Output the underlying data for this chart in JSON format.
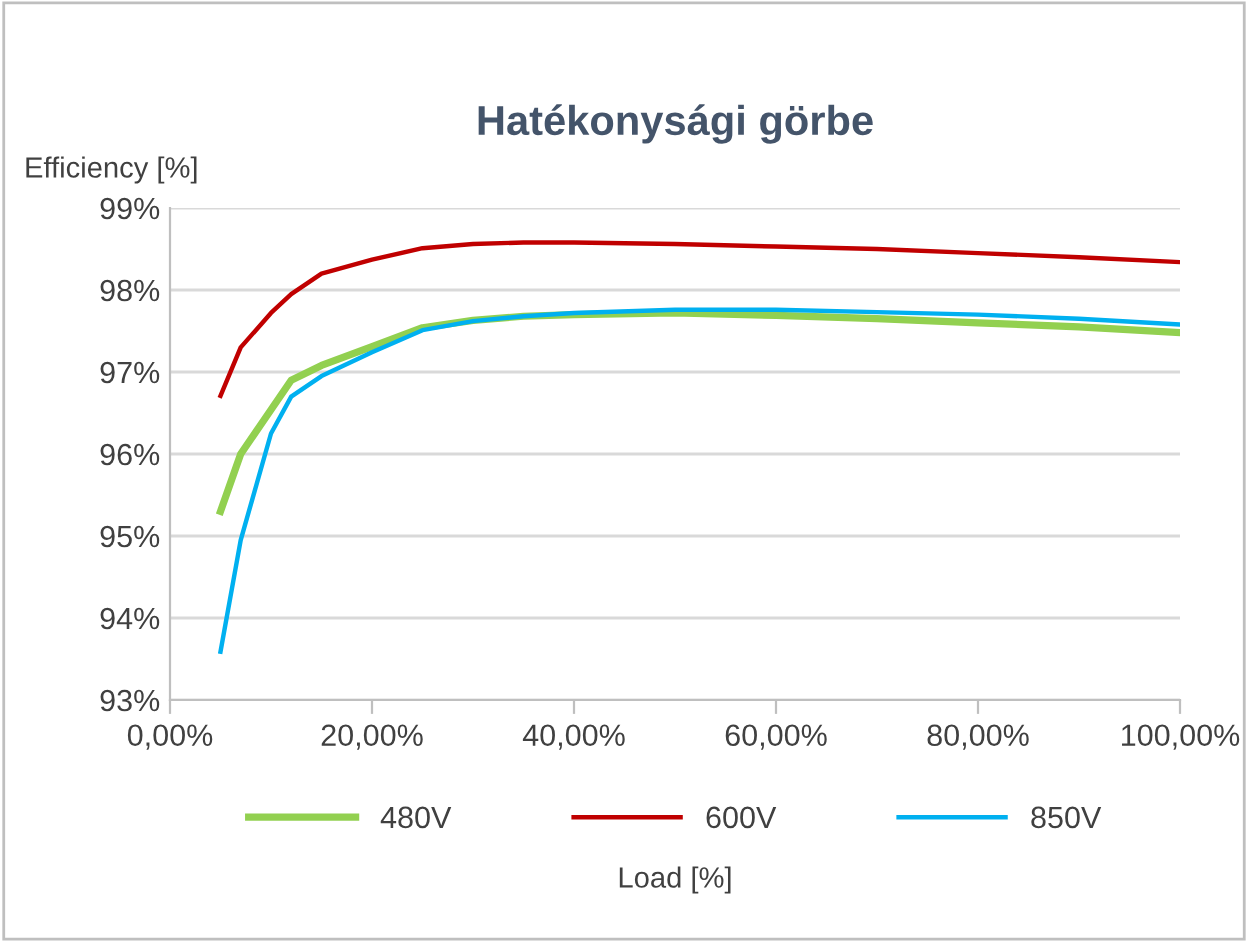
{
  "chart_data": {
    "type": "line",
    "title": "Hatékonysági görbe",
    "xlabel": "Load [%]",
    "ylabel": "Efficiency [%]",
    "x": [
      5,
      7,
      10,
      12,
      15,
      20,
      25,
      30,
      35,
      40,
      50,
      60,
      70,
      80,
      90,
      100
    ],
    "series": [
      {
        "name": "480V",
        "color": "#92d050",
        "values": [
          95.3,
          96.0,
          96.54,
          96.9,
          97.08,
          97.31,
          97.54,
          97.63,
          97.68,
          97.7,
          97.72,
          97.69,
          97.65,
          97.6,
          97.55,
          97.48
        ]
      },
      {
        "name": "600V",
        "color": "#c00000",
        "values": [
          96.71,
          97.3,
          97.72,
          97.95,
          98.2,
          98.37,
          98.51,
          98.56,
          98.58,
          98.58,
          98.56,
          98.53,
          98.5,
          98.45,
          98.4,
          98.34
        ]
      },
      {
        "name": "850V",
        "color": "#00b0f0",
        "values": [
          93.59,
          94.95,
          96.25,
          96.7,
          96.95,
          97.24,
          97.51,
          97.62,
          97.68,
          97.72,
          97.76,
          97.76,
          97.73,
          97.7,
          97.65,
          97.58
        ]
      }
    ],
    "xlim": [
      0,
      100
    ],
    "xticks": [
      {
        "value": 0,
        "label": "0,00%"
      },
      {
        "value": 20,
        "label": "20,00%"
      },
      {
        "value": 40,
        "label": "40,00%"
      },
      {
        "value": 60,
        "label": "60,00%"
      },
      {
        "value": 80,
        "label": "80,00%"
      },
      {
        "value": 100,
        "label": "100,00%"
      }
    ],
    "ylim": [
      93,
      99
    ],
    "yticks": [
      {
        "value": 93,
        "label": "93%"
      },
      {
        "value": 94,
        "label": "94%"
      },
      {
        "value": 95,
        "label": "95%"
      },
      {
        "value": 96,
        "label": "96%"
      },
      {
        "value": 97,
        "label": "97%"
      },
      {
        "value": 98,
        "label": "98%"
      },
      {
        "value": 99,
        "label": "99%"
      }
    ],
    "grid": "y",
    "legend": "bottom",
    "marker": "none",
    "line_style": "solid"
  }
}
